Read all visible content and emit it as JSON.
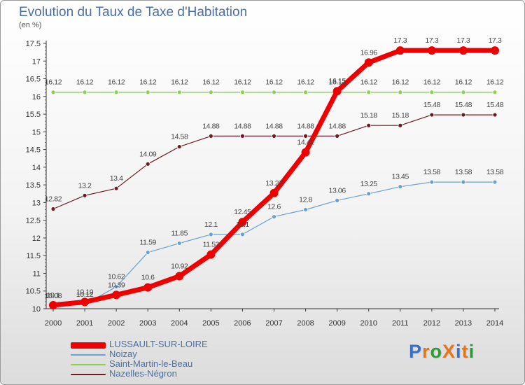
{
  "title": "Evolution du Taux de Taxe d'Habitation",
  "unit": "(en %)",
  "logo": {
    "text": "ProXiti",
    "colors": [
      "#3a6fc8",
      "#e4761b",
      "#2f9a38",
      "#e4761b",
      "#3a6fc8",
      "#e4761b",
      "#2f9a38"
    ]
  },
  "chart_data": {
    "type": "line",
    "title": "Evolution du Taux de Taxe d'Habitation",
    "ylabel": "(en %)",
    "xlabel": "",
    "x": [
      "2000",
      "2001",
      "2002",
      "2003",
      "2004",
      "2005",
      "2006",
      "2007",
      "2008",
      "2009",
      "2010",
      "2011",
      "2012",
      "2013",
      "2014"
    ],
    "ylim": [
      10,
      17.5
    ],
    "yticks": [
      "10",
      "10.5",
      "11",
      "11.5",
      "12",
      "12.5",
      "13",
      "13.5",
      "14",
      "14.5",
      "15",
      "15.5",
      "16",
      "16.5",
      "17",
      "17.5"
    ],
    "grid": false,
    "legend_position": "bottom",
    "series": [
      {
        "name": "LUSSAULT-SUR-LOIRE",
        "color": "#ee0000",
        "values": [
          10.1,
          10.19,
          10.39,
          10.6,
          10.92,
          11.53,
          12.45,
          13.27,
          14.42,
          16.15,
          16.96,
          17.3,
          17.3,
          17.3,
          17.3
        ],
        "labels": [
          "10.1",
          "10.19",
          "10.39",
          "10.6",
          "10.92",
          "11.53",
          "12.45",
          "13.27",
          "14.42",
          "16.15",
          "16.96",
          "17.3",
          "17.3",
          "17.3",
          "17.3"
        ]
      },
      {
        "name": "Noizay",
        "color": "#6d9fd0",
        "values": [
          10.08,
          10.12,
          10.62,
          11.59,
          11.85,
          12.1,
          12.1,
          12.6,
          12.8,
          13.06,
          13.25,
          13.45,
          13.58,
          13.58,
          13.58
        ],
        "labels": [
          "10.08",
          "10.12",
          "10.62",
          "11.59",
          "11.85",
          "12.1",
          "12.1",
          "12.6",
          "12.8",
          "13.06",
          "13.25",
          "13.45",
          "13.58",
          "13.58",
          "13.58"
        ]
      },
      {
        "name": "Saint-Martin-le-Beau",
        "color": "#8fd14f",
        "values": [
          16.12,
          16.12,
          16.12,
          16.12,
          16.12,
          16.12,
          16.12,
          16.12,
          16.12,
          16.12,
          16.12,
          16.12,
          16.12,
          16.12,
          16.12
        ],
        "labels": [
          "16.12",
          "16.12",
          "16.12",
          "16.12",
          "16.12",
          "16.12",
          "16.12",
          "16.12",
          "16.12",
          "16.12",
          "16.12",
          "16.12",
          "16.12",
          "16.12",
          "16.12"
        ]
      },
      {
        "name": "Nazelles-Négron",
        "color": "#6b1c24",
        "values": [
          12.82,
          13.2,
          13.4,
          14.09,
          14.58,
          14.88,
          14.88,
          14.88,
          14.88,
          14.88,
          15.18,
          15.18,
          15.48,
          15.48,
          15.48
        ],
        "labels": [
          "12.82",
          "13.2",
          "13.4",
          "14.09",
          "14.58",
          "14.88",
          "14.88",
          "14.88",
          "14.88",
          "14.88",
          "15.18",
          "15.18",
          "15.48",
          "15.48",
          "15.48"
        ]
      }
    ]
  }
}
